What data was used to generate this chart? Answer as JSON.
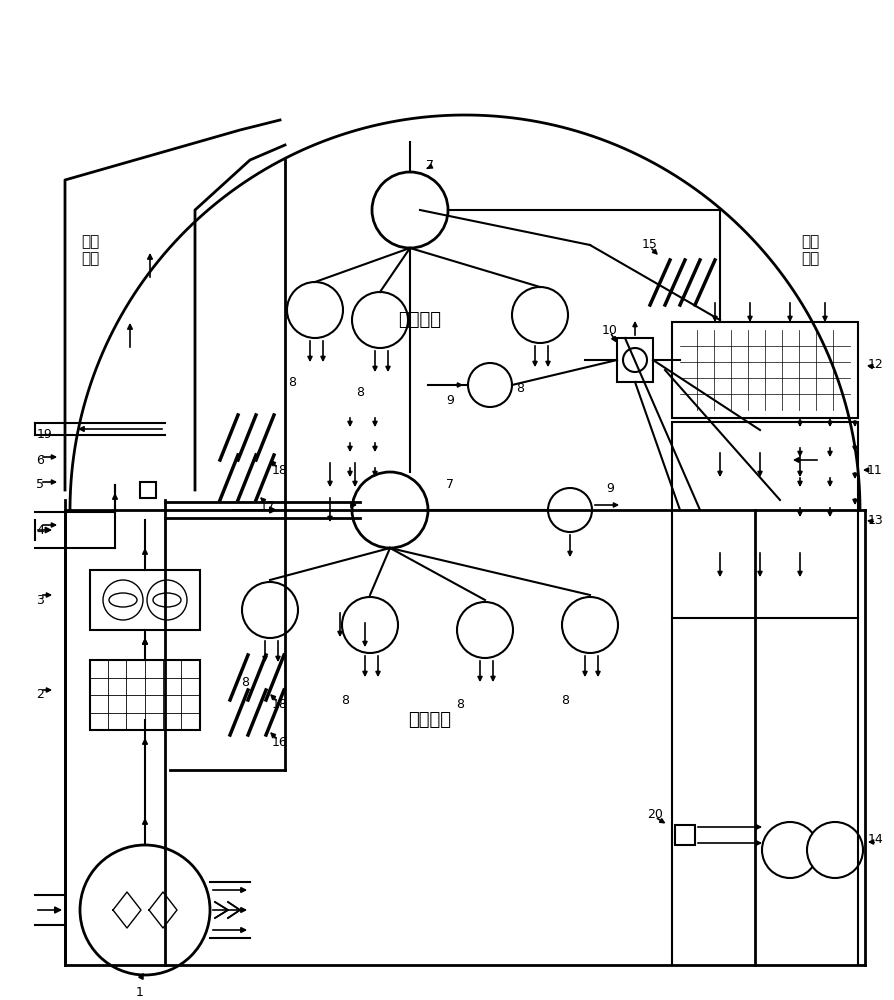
{
  "bg_color": "#ffffff",
  "line_color": "#000000",
  "labels": {
    "left_bay": "左设\n备舱",
    "front_cockpit": "前驾驶舱",
    "rear_cockpit": "后驾驶舱",
    "bottom_bay": "底设\n备舱"
  }
}
